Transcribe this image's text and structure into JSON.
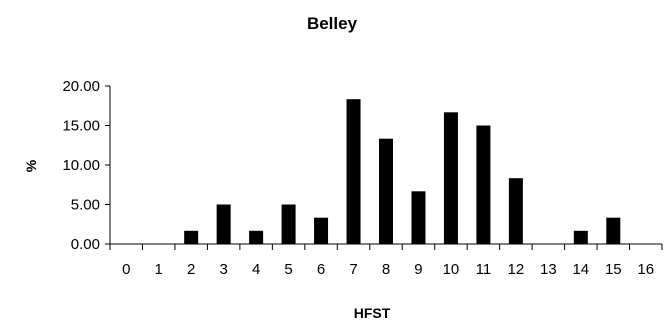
{
  "chart_data": {
    "type": "bar",
    "title": "Belley",
    "xlabel": "HFST",
    "ylabel": "%",
    "categories": [
      "0",
      "1",
      "2",
      "3",
      "4",
      "5",
      "6",
      "7",
      "8",
      "9",
      "10",
      "11",
      "12",
      "13",
      "14",
      "15",
      "16"
    ],
    "values": [
      0,
      0,
      1.67,
      5.0,
      1.67,
      5.0,
      3.33,
      18.33,
      13.33,
      6.67,
      16.67,
      15.0,
      8.33,
      0,
      1.67,
      3.33,
      0
    ],
    "ylim": [
      0,
      20
    ],
    "yticks": [
      "0.00",
      "5.00",
      "10.00",
      "15.00",
      "20.00"
    ],
    "grid": false,
    "legend": "none",
    "bar_color": "#000000"
  }
}
